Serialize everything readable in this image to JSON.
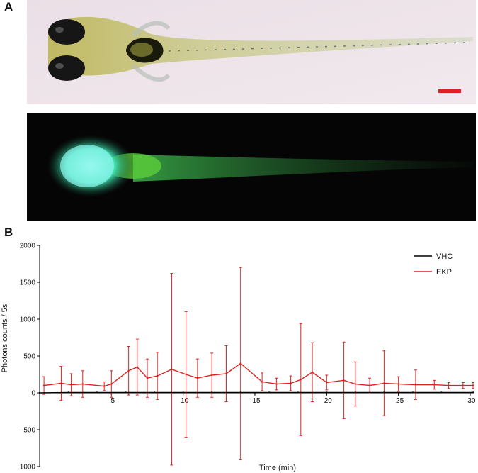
{
  "panels": {
    "a_letter": "A",
    "b_letter": "B"
  },
  "photos": {
    "brightfield": {
      "icon": "zebrafish-larva-brightfield",
      "scale_bar_color": "#e02020"
    },
    "fluorescence": {
      "icon": "zebrafish-larva-fluorescence",
      "glow_color": "#3fe0b0"
    }
  },
  "chart_data": {
    "type": "line",
    "title": "",
    "xlabel": "Time (min)",
    "ylabel": "Photons counts / 5s",
    "xlim": [
      0,
      30.2
    ],
    "ylim": [
      -1000,
      2000
    ],
    "xticks": [
      5,
      10,
      15,
      20,
      25,
      30
    ],
    "xtick_labels": [
      "5",
      "10",
      "15",
      "20",
      "25",
      "30"
    ],
    "yticks": [
      -1000,
      -500,
      0,
      500,
      1000,
      1500,
      2000
    ],
    "ytick_labels": [
      "-1000",
      "-500",
      "0",
      "500",
      "1000",
      "1500",
      "2000"
    ],
    "legend_position": "top-right",
    "series": [
      {
        "name": "VHC",
        "color": "#000000",
        "x": [
          0,
          2,
          4,
          6,
          8,
          10,
          12,
          14,
          16,
          18,
          20,
          22,
          24,
          26,
          28,
          30.2
        ],
        "y": [
          0,
          5,
          5,
          5,
          5,
          5,
          5,
          5,
          5,
          5,
          5,
          5,
          5,
          5,
          5,
          5
        ]
      },
      {
        "name": "EKP",
        "color": "#e02020",
        "x": [
          0.3,
          1.5,
          2.2,
          3.0,
          4.5,
          5.0,
          6.2,
          6.8,
          7.5,
          8.2,
          9.2,
          10.2,
          11.0,
          12.0,
          13.0,
          14.0,
          15.5,
          16.5,
          17.5,
          18.2,
          19.0,
          20.0,
          21.2,
          22.0,
          23.0,
          24.0,
          25.0,
          26.2,
          27.5,
          28.5,
          29.5,
          30.2
        ],
        "y": [
          100,
          130,
          110,
          120,
          90,
          120,
          300,
          350,
          200,
          230,
          320,
          250,
          200,
          240,
          260,
          400,
          150,
          120,
          130,
          180,
          280,
          140,
          170,
          120,
          100,
          130,
          120,
          110,
          110,
          100,
          100,
          100
        ],
        "err": [
          120,
          230,
          150,
          180,
          60,
          180,
          330,
          380,
          260,
          320,
          1300,
          850,
          260,
          300,
          380,
          1300,
          120,
          80,
          100,
          760,
          400,
          100,
          520,
          300,
          100,
          440,
          100,
          200,
          60,
          40,
          40,
          40
        ]
      }
    ]
  }
}
